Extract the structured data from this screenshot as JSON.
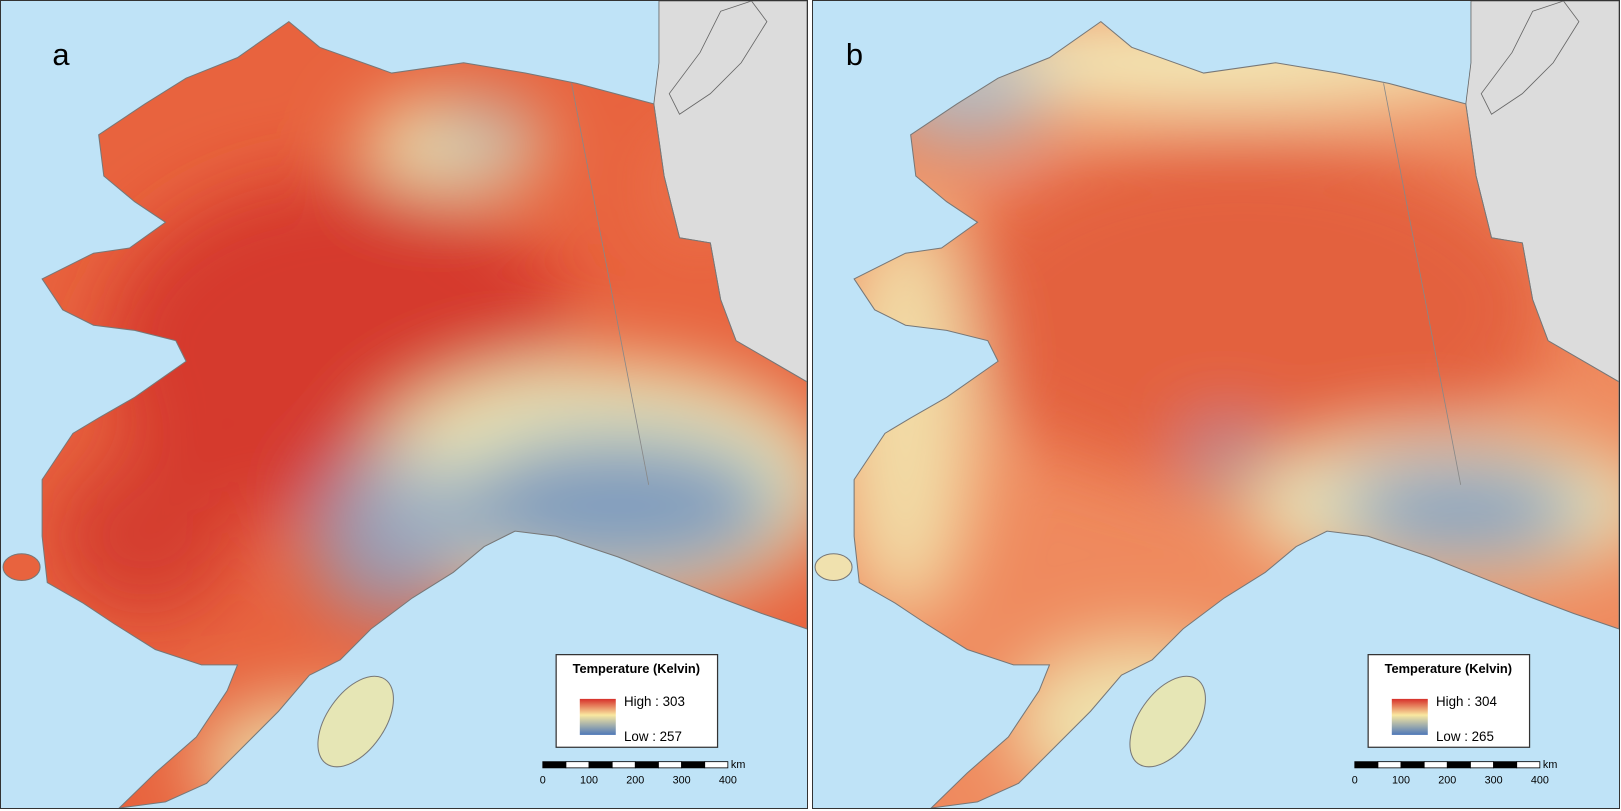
{
  "panels": [
    {
      "label": "a",
      "legend": {
        "title": "Temperature (Kelvin)",
        "high": "High : 303",
        "low": "Low : 257"
      },
      "scale": {
        "ticks": [
          "0",
          "100",
          "200",
          "300",
          "400"
        ],
        "unit": "km"
      }
    },
    {
      "label": "b",
      "legend": {
        "title": "Temperature (Kelvin)",
        "high": "High : 304",
        "low": "Low : 265"
      },
      "scale": {
        "ticks": [
          "0",
          "100",
          "200",
          "300",
          "400"
        ],
        "unit": "km"
      }
    }
  ]
}
